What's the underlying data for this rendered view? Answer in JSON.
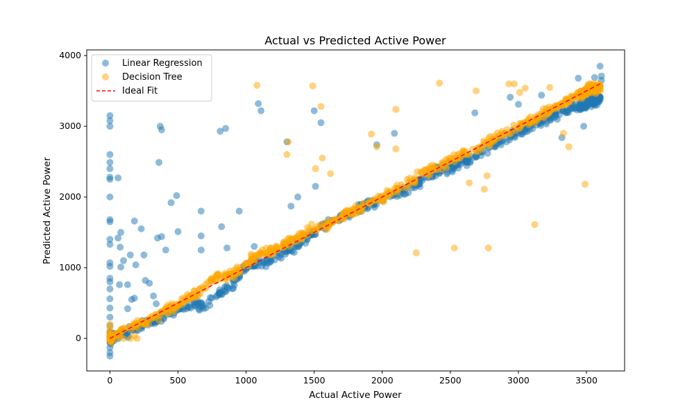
{
  "chart_data": {
    "type": "scatter",
    "title": "Actual vs Predicted Active Power",
    "xlabel": "Actual Active Power",
    "ylabel": "Predicted Active Power",
    "xlim": [
      -170,
      3780
    ],
    "ylim": [
      -460,
      4080
    ],
    "xticks": [
      0,
      500,
      1000,
      1500,
      2000,
      2500,
      3000,
      3500
    ],
    "yticks": [
      0,
      1000,
      2000,
      3000,
      4000
    ],
    "grid": false,
    "legend_position": "top-left",
    "colors": {
      "linear_regression": "#1f77b4",
      "decision_tree": "#ffa500",
      "ideal_fit": "#ff0000"
    },
    "series": [
      {
        "name": "Linear Regression",
        "kind": "scatter",
        "points": [
          [
            0,
            3150
          ],
          [
            0,
            3080
          ],
          [
            0,
            3000
          ],
          [
            0,
            2600
          ],
          [
            0,
            2490
          ],
          [
            0,
            2400
          ],
          [
            0,
            2280
          ],
          [
            0,
            2250
          ],
          [
            0,
            2000
          ],
          [
            0,
            1680
          ],
          [
            0,
            1650
          ],
          [
            0,
            1400
          ],
          [
            0,
            1330
          ],
          [
            0,
            1070
          ],
          [
            0,
            1020
          ],
          [
            0,
            850
          ],
          [
            0,
            800
          ],
          [
            0,
            700
          ],
          [
            0,
            560
          ],
          [
            0,
            430
          ],
          [
            0,
            300
          ],
          [
            0,
            180
          ],
          [
            0,
            90
          ],
          [
            0,
            20
          ],
          [
            0,
            -60
          ],
          [
            0,
            -130
          ],
          [
            0,
            -200
          ],
          [
            0,
            -250
          ],
          [
            60,
            2270
          ],
          [
            80,
            1500
          ],
          [
            75,
            1290
          ],
          [
            60,
            1420
          ],
          [
            100,
            1100
          ],
          [
            80,
            1010
          ],
          [
            70,
            760
          ],
          [
            130,
            760
          ],
          [
            180,
            1660
          ],
          [
            190,
            1040
          ],
          [
            150,
            1180
          ],
          [
            230,
            1550
          ],
          [
            250,
            1180
          ],
          [
            130,
            420
          ],
          [
            160,
            550
          ],
          [
            180,
            570
          ],
          [
            260,
            820
          ],
          [
            290,
            780
          ],
          [
            320,
            600
          ],
          [
            340,
            490
          ],
          [
            370,
            3000
          ],
          [
            380,
            2950
          ],
          [
            360,
            2490
          ],
          [
            350,
            1420
          ],
          [
            380,
            1440
          ],
          [
            410,
            1250
          ],
          [
            450,
            1920
          ],
          [
            490,
            2020
          ],
          [
            500,
            1510
          ],
          [
            670,
            1800
          ],
          [
            670,
            1450
          ],
          [
            670,
            1250
          ],
          [
            810,
            2930
          ],
          [
            850,
            2970
          ],
          [
            820,
            1580
          ],
          [
            860,
            1280
          ],
          [
            950,
            1800
          ],
          [
            1060,
            1300
          ],
          [
            1090,
            3320
          ],
          [
            1110,
            3220
          ],
          [
            1300,
            2780
          ],
          [
            1330,
            1870
          ],
          [
            1380,
            2000
          ],
          [
            1500,
            3220
          ],
          [
            1550,
            3050
          ],
          [
            1510,
            2150
          ],
          [
            1960,
            2740
          ],
          [
            2090,
            2900
          ],
          [
            2680,
            3190
          ],
          [
            2940,
            3410
          ],
          [
            3000,
            3310
          ],
          [
            3170,
            3440
          ],
          [
            3440,
            3680
          ],
          [
            3560,
            3690
          ],
          [
            3600,
            3850
          ],
          [
            3610,
            3710
          ],
          [
            3610,
            3650
          ],
          [
            3320,
            2840
          ],
          [
            3480,
            3000
          ]
        ],
        "trend": [
          [
            0,
            0
          ],
          [
            100,
            60
          ],
          [
            200,
            150
          ],
          [
            300,
            240
          ],
          [
            400,
            320
          ],
          [
            500,
            400
          ],
          [
            600,
            470
          ],
          [
            650,
            470
          ],
          [
            700,
            470
          ],
          [
            800,
            620
          ],
          [
            900,
            760
          ],
          [
            1000,
            1000
          ],
          [
            1100,
            1060
          ],
          [
            1200,
            1150
          ],
          [
            1300,
            1230
          ],
          [
            1400,
            1340
          ],
          [
            1500,
            1520
          ],
          [
            1600,
            1620
          ],
          [
            1700,
            1720
          ],
          [
            1800,
            1800
          ],
          [
            1900,
            1900
          ],
          [
            2000,
            1950
          ],
          [
            2100,
            2020
          ],
          [
            2200,
            2120
          ],
          [
            2300,
            2250
          ],
          [
            2400,
            2370
          ],
          [
            2500,
            2420
          ],
          [
            2600,
            2500
          ],
          [
            2700,
            2600
          ],
          [
            2800,
            2700
          ],
          [
            2900,
            2820
          ],
          [
            3000,
            2920
          ],
          [
            3100,
            3000
          ],
          [
            3200,
            3100
          ],
          [
            3300,
            3180
          ],
          [
            3400,
            3250
          ],
          [
            3500,
            3320
          ],
          [
            3600,
            3400
          ]
        ]
      },
      {
        "name": "Decision Tree",
        "kind": "scatter",
        "points": [
          [
            0,
            200
          ],
          [
            0,
            150
          ],
          [
            0,
            100
          ],
          [
            0,
            60
          ],
          [
            0,
            20
          ],
          [
            0,
            0
          ],
          [
            20,
            40
          ],
          [
            50,
            0
          ],
          [
            100,
            0
          ],
          [
            150,
            0
          ],
          [
            200,
            0
          ],
          [
            180,
            30
          ],
          [
            1080,
            3580
          ],
          [
            1490,
            3570
          ],
          [
            1550,
            3280
          ],
          [
            1300,
            2600
          ],
          [
            1310,
            2780
          ],
          [
            1510,
            2400
          ],
          [
            1560,
            2550
          ],
          [
            1620,
            2330
          ],
          [
            1920,
            2890
          ],
          [
            1960,
            2710
          ],
          [
            2100,
            3240
          ],
          [
            2100,
            2680
          ],
          [
            2420,
            3610
          ],
          [
            2690,
            3500
          ],
          [
            2440,
            2460
          ],
          [
            2530,
            1280
          ],
          [
            2780,
            1280
          ],
          [
            2250,
            1210
          ],
          [
            2640,
            2200
          ],
          [
            2750,
            2110
          ],
          [
            2770,
            2300
          ],
          [
            2930,
            3600
          ],
          [
            2970,
            3600
          ],
          [
            3010,
            3480
          ],
          [
            3050,
            3540
          ],
          [
            3120,
            1610
          ],
          [
            3230,
            3550
          ],
          [
            3330,
            2900
          ],
          [
            3370,
            2710
          ],
          [
            3490,
            2180
          ],
          [
            3500,
            3450
          ],
          [
            3550,
            3600
          ]
        ],
        "trend": [
          [
            0,
            0
          ],
          [
            200,
            200
          ],
          [
            300,
            250
          ],
          [
            400,
            400
          ],
          [
            500,
            480
          ],
          [
            600,
            600
          ],
          [
            700,
            740
          ],
          [
            800,
            880
          ],
          [
            900,
            900
          ],
          [
            1000,
            1050
          ],
          [
            1100,
            1200
          ],
          [
            1200,
            1250
          ],
          [
            1300,
            1350
          ],
          [
            1400,
            1450
          ],
          [
            1500,
            1550
          ],
          [
            1600,
            1600
          ],
          [
            1700,
            1720
          ],
          [
            1800,
            1800
          ],
          [
            1900,
            1900
          ],
          [
            2000,
            2000
          ],
          [
            2100,
            2100
          ],
          [
            2200,
            2200
          ],
          [
            2300,
            2350
          ],
          [
            2400,
            2400
          ],
          [
            2500,
            2500
          ],
          [
            2600,
            2620
          ],
          [
            2700,
            2700
          ],
          [
            2800,
            2800
          ],
          [
            2900,
            2900
          ],
          [
            3000,
            3000
          ],
          [
            3100,
            3100
          ],
          [
            3200,
            3200
          ],
          [
            3300,
            3300
          ],
          [
            3400,
            3400
          ],
          [
            3500,
            3500
          ],
          [
            3600,
            3550
          ]
        ]
      },
      {
        "name": "Ideal Fit",
        "kind": "line",
        "dashed": true,
        "x": [
          0,
          3610
        ],
        "y": [
          0,
          3610
        ]
      }
    ]
  }
}
